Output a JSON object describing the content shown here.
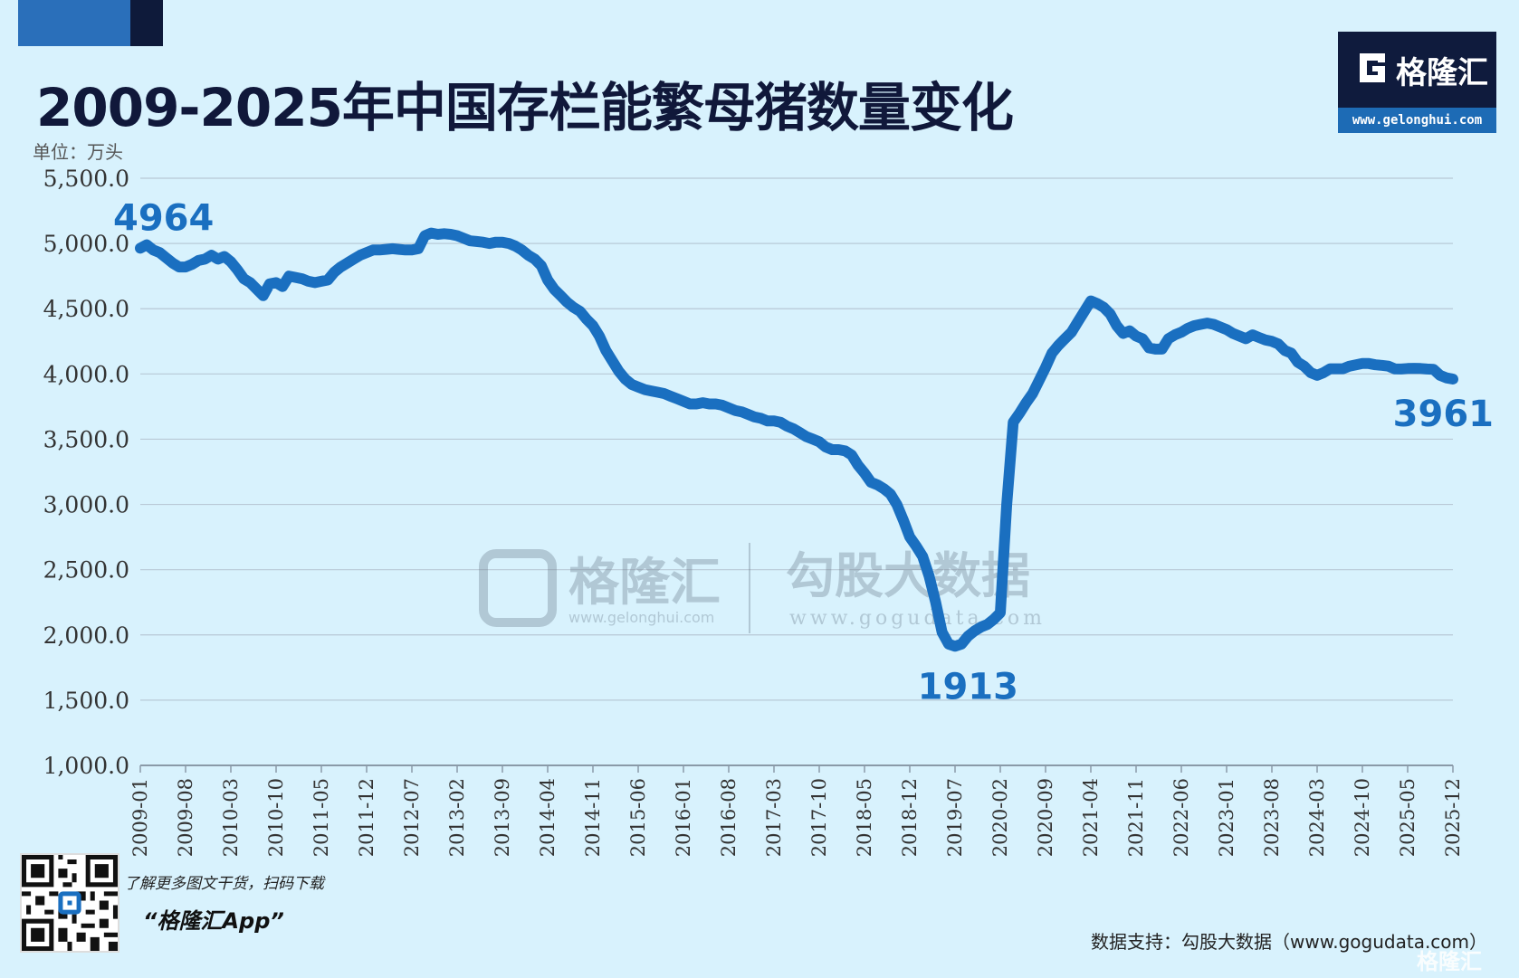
{
  "title": "2009-2025年中国存栏能繁母猪数量变化",
  "unit_label": "单位：万头",
  "logo": {
    "name": "格隆汇",
    "url": "www.gelonghui.com"
  },
  "watermark": {
    "left_name": "格隆汇",
    "left_url": "www.gelonghui.com",
    "right_name": "勾股大数据",
    "right_url": "www.gogudata.com"
  },
  "footer": {
    "qr_text": "了解更多图文干货，扫码下载",
    "app_name": "“格隆汇App”",
    "source": "数据支持：勾股大数据（www.gogudata.com）",
    "corner_mark": "格隆汇"
  },
  "colors": {
    "line": "#1a6fc0",
    "annotation": "#1a6fc0",
    "grid": "#b9c9d6",
    "background": "#d8f2fd"
  },
  "chart_data": {
    "type": "line",
    "title": "2009-2025年中国存栏能繁母猪数量变化",
    "ylabel": "单位：万头",
    "ylim": [
      1000,
      5500
    ],
    "yticks": [
      "5,500.0",
      "5,000.0",
      "4,500.0",
      "4,000.0",
      "3,500.0",
      "3,000.0",
      "2,500.0",
      "2,000.0",
      "1,500.0",
      "1,000.0"
    ],
    "xticks": [
      "2009-01",
      "2009-08",
      "2010-03",
      "2010-10",
      "2011-05",
      "2011-12",
      "2012-07",
      "2013-02",
      "2013-09",
      "2014-04",
      "2014-11",
      "2015-06",
      "2016-01",
      "2016-08",
      "2017-03",
      "2017-10",
      "2018-05",
      "2018-12",
      "2019-07",
      "2020-02",
      "2020-09",
      "2021-04",
      "2021-11",
      "2022-06",
      "2023-01",
      "2023-08",
      "2024-03",
      "2024-10",
      "2025-05",
      "2025-12"
    ],
    "grid": true,
    "annotations": [
      {
        "text": "4964",
        "x": "2009-01",
        "y": 4964
      },
      {
        "text": "1913",
        "x": "2019-09",
        "y": 1913
      },
      {
        "text": "3961",
        "x": "2025-12",
        "y": 3961
      }
    ],
    "series": [
      {
        "points": [
          [
            "2009-01",
            4964
          ],
          [
            "2009-02",
            4990
          ],
          [
            "2009-03",
            4950
          ],
          [
            "2009-04",
            4930
          ],
          [
            "2009-05",
            4890
          ],
          [
            "2009-06",
            4850
          ],
          [
            "2009-07",
            4820
          ],
          [
            "2009-08",
            4820
          ],
          [
            "2009-09",
            4840
          ],
          [
            "2009-10",
            4870
          ],
          [
            "2009-11",
            4880
          ],
          [
            "2009-12",
            4910
          ],
          [
            "2010-01",
            4880
          ],
          [
            "2010-02",
            4900
          ],
          [
            "2010-03",
            4860
          ],
          [
            "2010-04",
            4800
          ],
          [
            "2010-05",
            4730
          ],
          [
            "2010-06",
            4700
          ],
          [
            "2010-07",
            4650
          ],
          [
            "2010-08",
            4600
          ],
          [
            "2010-09",
            4690
          ],
          [
            "2010-10",
            4700
          ],
          [
            "2010-11",
            4670
          ],
          [
            "2010-12",
            4750
          ],
          [
            "2011-01",
            4740
          ],
          [
            "2011-02",
            4730
          ],
          [
            "2011-03",
            4710
          ],
          [
            "2011-04",
            4700
          ],
          [
            "2011-05",
            4710
          ],
          [
            "2011-06",
            4720
          ],
          [
            "2011-07",
            4780
          ],
          [
            "2011-08",
            4820
          ],
          [
            "2011-09",
            4850
          ],
          [
            "2011-10",
            4880
          ],
          [
            "2011-11",
            4910
          ],
          [
            "2011-12",
            4930
          ],
          [
            "2012-01",
            4950
          ],
          [
            "2012-02",
            4950
          ],
          [
            "2012-03",
            4955
          ],
          [
            "2012-04",
            4960
          ],
          [
            "2012-05",
            4955
          ],
          [
            "2012-06",
            4950
          ],
          [
            "2012-07",
            4950
          ],
          [
            "2012-08",
            4960
          ],
          [
            "2012-09",
            5060
          ],
          [
            "2012-10",
            5080
          ],
          [
            "2012-11",
            5070
          ],
          [
            "2012-12",
            5075
          ],
          [
            "2013-01",
            5070
          ],
          [
            "2013-02",
            5060
          ],
          [
            "2013-03",
            5040
          ],
          [
            "2013-04",
            5020
          ],
          [
            "2013-05",
            5015
          ],
          [
            "2013-06",
            5010
          ],
          [
            "2013-07",
            5000
          ],
          [
            "2013-08",
            5010
          ],
          [
            "2013-09",
            5010
          ],
          [
            "2013-10",
            5000
          ],
          [
            "2013-11",
            4980
          ],
          [
            "2013-12",
            4950
          ],
          [
            "2014-01",
            4910
          ],
          [
            "2014-02",
            4880
          ],
          [
            "2014-03",
            4830
          ],
          [
            "2014-04",
            4720
          ],
          [
            "2014-05",
            4650
          ],
          [
            "2014-06",
            4600
          ],
          [
            "2014-07",
            4550
          ],
          [
            "2014-08",
            4510
          ],
          [
            "2014-09",
            4480
          ],
          [
            "2014-10",
            4420
          ],
          [
            "2014-11",
            4370
          ],
          [
            "2014-12",
            4290
          ],
          [
            "2015-01",
            4180
          ],
          [
            "2015-02",
            4100
          ],
          [
            "2015-03",
            4020
          ],
          [
            "2015-04",
            3960
          ],
          [
            "2015-05",
            3920
          ],
          [
            "2015-06",
            3900
          ],
          [
            "2015-07",
            3880
          ],
          [
            "2015-08",
            3870
          ],
          [
            "2015-09",
            3860
          ],
          [
            "2015-10",
            3850
          ],
          [
            "2015-11",
            3830
          ],
          [
            "2015-12",
            3810
          ],
          [
            "2016-01",
            3790
          ],
          [
            "2016-02",
            3770
          ],
          [
            "2016-03",
            3770
          ],
          [
            "2016-04",
            3780
          ],
          [
            "2016-05",
            3770
          ],
          [
            "2016-06",
            3770
          ],
          [
            "2016-07",
            3760
          ],
          [
            "2016-08",
            3740
          ],
          [
            "2016-09",
            3720
          ],
          [
            "2016-10",
            3710
          ],
          [
            "2016-11",
            3690
          ],
          [
            "2016-12",
            3670
          ],
          [
            "2017-01",
            3660
          ],
          [
            "2017-02",
            3640
          ],
          [
            "2017-03",
            3640
          ],
          [
            "2017-04",
            3630
          ],
          [
            "2017-05",
            3600
          ],
          [
            "2017-06",
            3580
          ],
          [
            "2017-07",
            3550
          ],
          [
            "2017-08",
            3520
          ],
          [
            "2017-09",
            3500
          ],
          [
            "2017-10",
            3480
          ],
          [
            "2017-11",
            3440
          ],
          [
            "2017-12",
            3420
          ],
          [
            "2018-01",
            3420
          ],
          [
            "2018-02",
            3410
          ],
          [
            "2018-03",
            3380
          ],
          [
            "2018-04",
            3300
          ],
          [
            "2018-05",
            3240
          ],
          [
            "2018-06",
            3170
          ],
          [
            "2018-07",
            3150
          ],
          [
            "2018-08",
            3120
          ],
          [
            "2018-09",
            3080
          ],
          [
            "2018-10",
            3000
          ],
          [
            "2018-11",
            2880
          ],
          [
            "2018-12",
            2750
          ],
          [
            "2019-01",
            2680
          ],
          [
            "2019-02",
            2600
          ],
          [
            "2019-03",
            2450
          ],
          [
            "2019-04",
            2250
          ],
          [
            "2019-05",
            2020
          ],
          [
            "2019-06",
            1930
          ],
          [
            "2019-07",
            1913
          ],
          [
            "2019-08",
            1930
          ],
          [
            "2019-09",
            1990
          ],
          [
            "2019-10",
            2030
          ],
          [
            "2019-11",
            2060
          ],
          [
            "2019-12",
            2080
          ],
          [
            "2020-01",
            2120
          ],
          [
            "2020-02",
            2170
          ],
          [
            "2020-03",
            3000
          ],
          [
            "2020-04",
            3630
          ],
          [
            "2020-05",
            3700
          ],
          [
            "2020-06",
            3780
          ],
          [
            "2020-07",
            3850
          ],
          [
            "2020-08",
            3950
          ],
          [
            "2020-09",
            4050
          ],
          [
            "2020-10",
            4160
          ],
          [
            "2020-11",
            4220
          ],
          [
            "2020-12",
            4270
          ],
          [
            "2021-01",
            4320
          ],
          [
            "2021-02",
            4400
          ],
          [
            "2021-03",
            4480
          ],
          [
            "2021-04",
            4560
          ],
          [
            "2021-05",
            4540
          ],
          [
            "2021-06",
            4510
          ],
          [
            "2021-07",
            4460
          ],
          [
            "2021-08",
            4370
          ],
          [
            "2021-09",
            4310
          ],
          [
            "2021-10",
            4330
          ],
          [
            "2021-11",
            4290
          ],
          [
            "2021-12",
            4270
          ],
          [
            "2022-01",
            4200
          ],
          [
            "2022-02",
            4190
          ],
          [
            "2022-03",
            4190
          ],
          [
            "2022-04",
            4270
          ],
          [
            "2022-05",
            4300
          ],
          [
            "2022-06",
            4320
          ],
          [
            "2022-07",
            4350
          ],
          [
            "2022-08",
            4370
          ],
          [
            "2022-09",
            4380
          ],
          [
            "2022-10",
            4390
          ],
          [
            "2022-11",
            4380
          ],
          [
            "2022-12",
            4360
          ],
          [
            "2023-01",
            4340
          ],
          [
            "2023-02",
            4310
          ],
          [
            "2023-03",
            4290
          ],
          [
            "2023-04",
            4270
          ],
          [
            "2023-05",
            4300
          ],
          [
            "2023-06",
            4280
          ],
          [
            "2023-07",
            4260
          ],
          [
            "2023-08",
            4250
          ],
          [
            "2023-09",
            4230
          ],
          [
            "2023-10",
            4180
          ],
          [
            "2023-11",
            4160
          ],
          [
            "2023-12",
            4090
          ],
          [
            "2024-01",
            4060
          ],
          [
            "2024-02",
            4010
          ],
          [
            "2024-03",
            3990
          ],
          [
            "2024-04",
            4010
          ],
          [
            "2024-05",
            4040
          ],
          [
            "2024-06",
            4040
          ],
          [
            "2024-07",
            4040
          ],
          [
            "2024-08",
            4060
          ],
          [
            "2024-09",
            4070
          ],
          [
            "2024-10",
            4080
          ],
          [
            "2024-11",
            4080
          ],
          [
            "2024-12",
            4070
          ],
          [
            "2025-01",
            4066
          ],
          [
            "2025-02",
            4060
          ],
          [
            "2025-03",
            4039
          ],
          [
            "2025-04",
            4038
          ],
          [
            "2025-05",
            4042
          ],
          [
            "2025-06",
            4043
          ],
          [
            "2025-07",
            4042
          ],
          [
            "2025-08",
            4038
          ],
          [
            "2025-09",
            4035
          ],
          [
            "2025-10",
            3990
          ],
          [
            "2025-11",
            3970
          ],
          [
            "2025-12",
            3961
          ]
        ]
      }
    ]
  }
}
